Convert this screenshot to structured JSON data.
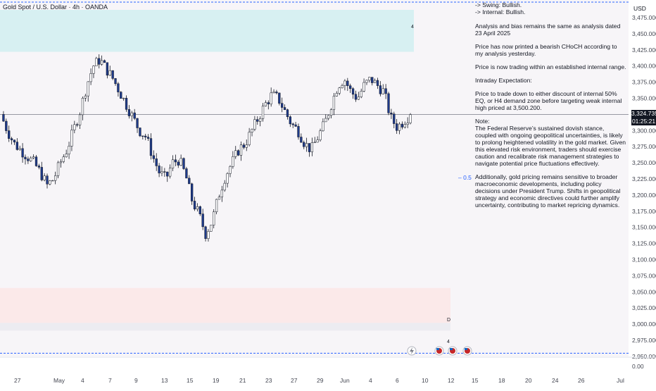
{
  "header": {
    "symbol_title": "Gold Spot / U.S. Dollar · 4h · OANDA"
  },
  "price_axis": {
    "currency": "USD",
    "ticks": [
      "3,475.000",
      "3,450.000",
      "3,425.000",
      "3,400.000",
      "3,375.000",
      "3,350.000",
      "3,300.000",
      "3,275.000",
      "3,250.000",
      "3,225.000",
      "3,200.000",
      "3,175.000",
      "3,150.000",
      "3,125.000",
      "3,100.000",
      "3,075.000",
      "3,050.000",
      "3,025.000",
      "3,000.000",
      "2,975.000",
      "2,950.000",
      "0.00"
    ],
    "current_price": "3,324.735",
    "countdown": "01:25:21"
  },
  "time_axis": {
    "ticks": [
      "27",
      "May",
      "4",
      "7",
      "9",
      "13",
      "15",
      "19",
      "21",
      "23",
      "27",
      "29",
      "Jun",
      "4",
      "6",
      "10",
      "12",
      "15",
      "18",
      "20",
      "24",
      "26",
      "Jul"
    ]
  },
  "analysis_note": {
    "lines": [
      "-> Swing:  Bullish.",
      "-> Internal:  Bullish."
    ],
    "paragraphs": [
      "Analysis and bias remains the same as analysis dated 23 April 2025",
      "Price has now printed a bearish CHoCH according to my analysis yesterday.",
      "Price is now trading within an established internal range.",
      "Intraday Expectation:",
      "Price to trade down to either discount of internal 50% EQ, or H4 demand zone before targeting weak internal high priced at 3,500.200.",
      "Note:\nThe Federal Reserve’s sustained dovish stance, coupled with ongoing geopolitical uncertainties, is likely to prolong heightened volatility in the gold market. Given this elevated risk environment, traders should exercise caution and recalibrate risk management strategies to navigate potential price fluctuations effectively.",
      "Additionally, gold pricing remains sensitive to broader macroeconomic developments, including policy decisions under President Trump. Shifts in geopolitical strategy and economic directives could further amplify uncertainty, contributing to market repricing dynamics."
    ]
  },
  "annotations": {
    "fib_level": "0.5",
    "supply_zone_marker": "4",
    "demand_zone_marker": "D",
    "demand_zone_marker_2": "4"
  },
  "colors": {
    "bull_candle": "#ffffff",
    "bear_candle": "#1e3a8a",
    "wick": "#131722",
    "supply_zone": "#d7f0f2",
    "demand_zone": "#fbe9e9",
    "demand_zone_lower": "#ececf1",
    "dotted_line": "#2962ff"
  },
  "chart_data": {
    "type": "candlestick",
    "title": "",
    "ylim": [
      2937.5,
      3487.5
    ],
    "ylabel": "USD",
    "x": [
      "Apr 27",
      "May",
      "May 4",
      "May 7",
      "May 9",
      "May 13",
      "May 15",
      "May 19",
      "May 21",
      "May 23",
      "May 27",
      "May 29",
      "Jun",
      "Jun 4",
      "Jun 6"
    ],
    "close_path": [
      3325,
      3300,
      3280,
      3270,
      3260,
      3250,
      3235,
      3215,
      3225,
      3250,
      3270,
      3300,
      3330,
      3370,
      3400,
      3410,
      3395,
      3380,
      3360,
      3340,
      3320,
      3300,
      3290,
      3260,
      3235,
      3225,
      3250,
      3255,
      3230,
      3190,
      3170,
      3140,
      3160,
      3200,
      3230,
      3250,
      3270,
      3280,
      3300,
      3320,
      3340,
      3355,
      3350,
      3330,
      3310,
      3300,
      3280,
      3270,
      3290,
      3310,
      3340,
      3370,
      3380,
      3360,
      3350,
      3370,
      3380,
      3370,
      3360,
      3320,
      3305,
      3315,
      3324.735
    ],
    "current_price": 3324.735,
    "supply_zone": [
      3422,
      3487
    ],
    "demand_zone": [
      2990,
      3056
    ],
    "fib_eq": 3227,
    "weak_high": 3500.2,
    "lower_dotted": 2955
  }
}
